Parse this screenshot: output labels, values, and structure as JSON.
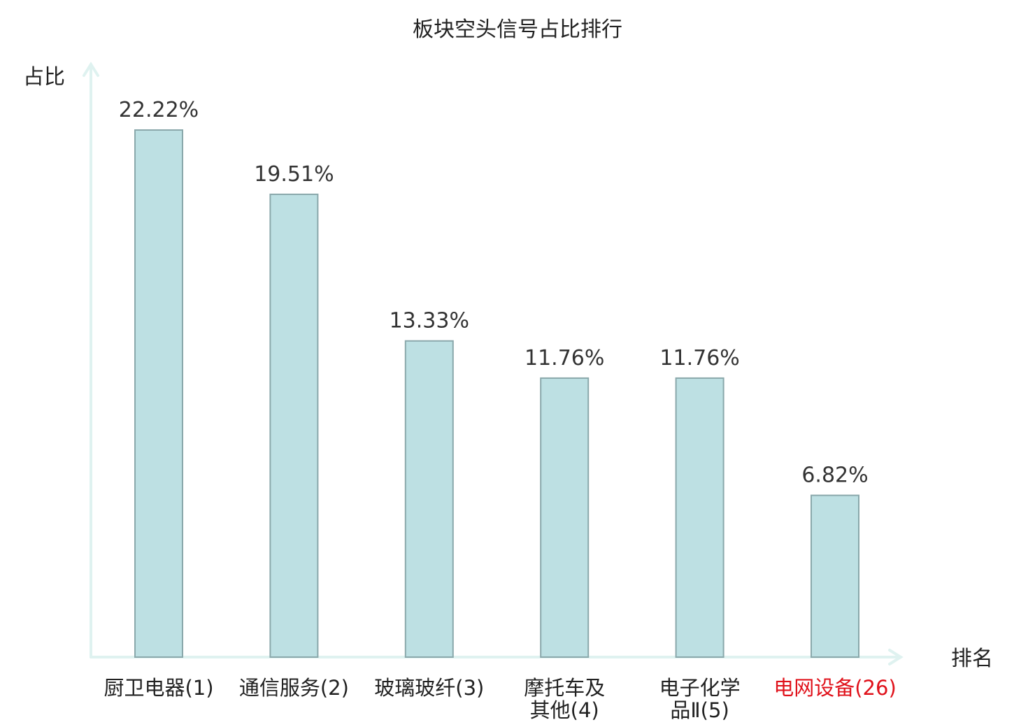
{
  "chart_data": {
    "type": "bar",
    "title": "板块空头信号占比排行",
    "xlabel": "排名",
    "ylabel": "占比",
    "ylim": [
      0,
      25
    ],
    "grid": false,
    "categories": [
      {
        "lines": [
          "厨卫电器(1)"
        ],
        "highlight": false
      },
      {
        "lines": [
          "通信服务(2)"
        ],
        "highlight": false
      },
      {
        "lines": [
          "玻璃玻纤(3)"
        ],
        "highlight": false
      },
      {
        "lines": [
          "摩托车及",
          "其他(4)"
        ],
        "highlight": false
      },
      {
        "lines": [
          "电子化学",
          "品Ⅱ(5)"
        ],
        "highlight": false
      },
      {
        "lines": [
          "电网设备(26)"
        ],
        "highlight": true
      }
    ],
    "values": [
      22.22,
      19.51,
      13.33,
      11.76,
      11.76,
      6.82
    ],
    "value_labels": [
      "22.22%",
      "19.51%",
      "13.33%",
      "11.76%",
      "11.76%",
      "6.82%"
    ],
    "colors": {
      "bar_fill": "#bde0e3",
      "bar_stroke": "#8aa8ab",
      "axis": "#dff2f0",
      "label_text": "#222222",
      "highlight_text": "#e0121b"
    }
  }
}
